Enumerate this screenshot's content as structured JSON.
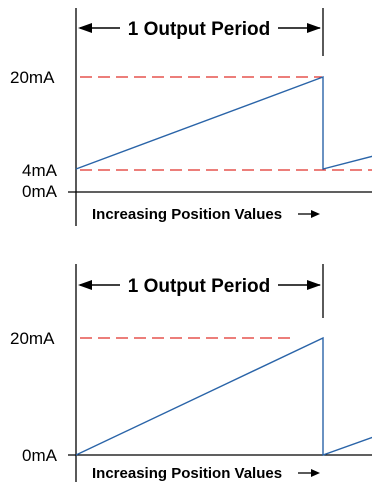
{
  "colors": {
    "signal": "#2a64a8",
    "reference": "#e0302a",
    "axis": "#000000"
  },
  "chart_data": [
    {
      "type": "line",
      "period_label": "1 Output Period",
      "xlabel": "Increasing Position Values",
      "y_ticks": [
        {
          "label": "20mA",
          "value": 20
        },
        {
          "label": "4mA",
          "value": 4
        },
        {
          "label": "0mA",
          "value": 0
        }
      ],
      "reference_lines": [
        20,
        4
      ],
      "ylim": [
        0,
        20
      ],
      "x": [
        0,
        1,
        1,
        1.2
      ],
      "values": [
        4,
        20,
        4,
        6.2
      ]
    },
    {
      "type": "line",
      "period_label": "1 Output Period",
      "xlabel": "Increasing Position Values",
      "y_ticks": [
        {
          "label": "20mA",
          "value": 20
        },
        {
          "label": "0mA",
          "value": 0
        }
      ],
      "reference_lines": [
        20
      ],
      "ylim": [
        0,
        20
      ],
      "x": [
        0,
        1,
        1,
        1.2
      ],
      "values": [
        0,
        20,
        0,
        3
      ]
    }
  ]
}
